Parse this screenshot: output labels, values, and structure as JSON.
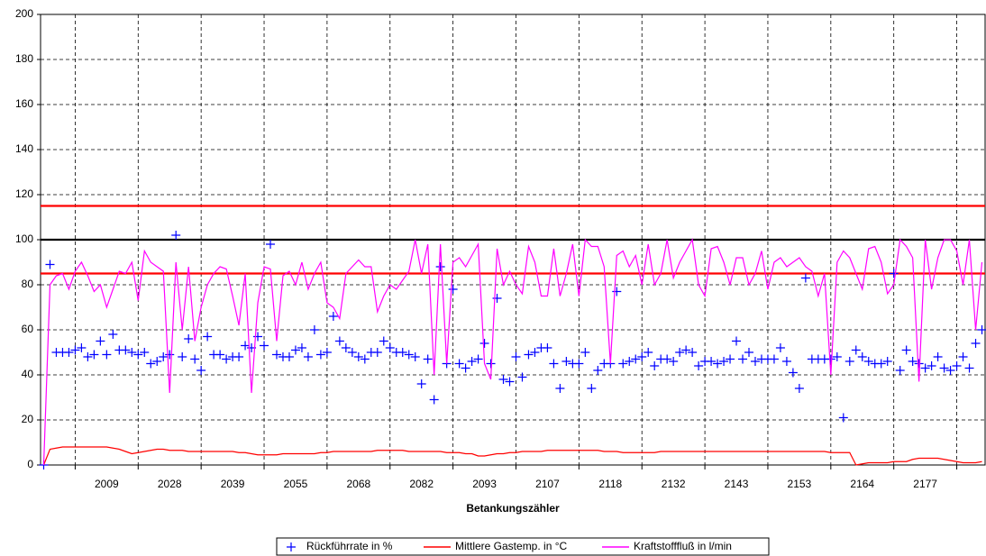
{
  "chart_data": {
    "type": "line",
    "xlabel": "Betankungszähler",
    "categories": [
      null,
      null,
      null,
      null,
      null,
      null,
      null,
      null,
      null,
      null,
      "2009",
      null,
      null,
      null,
      null,
      null,
      null,
      null,
      null,
      null,
      "2028",
      null,
      null,
      null,
      null,
      null,
      null,
      null,
      null,
      null,
      "2039",
      null,
      null,
      null,
      null,
      null,
      null,
      null,
      null,
      null,
      "2055",
      null,
      null,
      null,
      null,
      null,
      null,
      null,
      null,
      null,
      "2068",
      null,
      null,
      null,
      null,
      null,
      null,
      null,
      null,
      null,
      "2082",
      null,
      null,
      null,
      null,
      null,
      null,
      null,
      null,
      null,
      "2093",
      null,
      null,
      null,
      null,
      null,
      null,
      null,
      null,
      null,
      "2107",
      null,
      null,
      null,
      null,
      null,
      null,
      null,
      null,
      null,
      "2118",
      null,
      null,
      null,
      null,
      null,
      null,
      null,
      null,
      null,
      "2132",
      null,
      null,
      null,
      null,
      null,
      null,
      null,
      null,
      null,
      "2143",
      null,
      null,
      null,
      null,
      null,
      null,
      null,
      null,
      null,
      "2153",
      null,
      null,
      null,
      null,
      null,
      null,
      null,
      null,
      null,
      "2164",
      null,
      null,
      null,
      null,
      null,
      null,
      null,
      null,
      null,
      "2177",
      null,
      null,
      null,
      null,
      null,
      null,
      null,
      null,
      null
    ],
    "ylim": [
      0,
      200
    ],
    "yticks": [
      0,
      20,
      40,
      60,
      80,
      100,
      120,
      140,
      160,
      180,
      200
    ],
    "grid": true,
    "reference_lines": [
      {
        "value": 115,
        "color": "#ff0000"
      },
      {
        "value": 100,
        "color": "#000000"
      },
      {
        "value": 85,
        "color": "#ff0000"
      }
    ],
    "legend": "bottom",
    "series": [
      {
        "name": "Rückführrate in %",
        "color": "#0000ff",
        "style": "plus",
        "values": [
          0,
          89,
          50,
          50,
          50,
          51,
          52,
          48,
          49,
          55,
          49,
          58,
          51,
          51,
          50,
          49,
          50,
          45,
          46,
          48,
          49,
          102,
          48,
          56,
          47,
          42,
          57,
          49,
          49,
          47,
          48,
          48,
          53,
          52,
          57,
          53,
          98,
          49,
          48,
          48,
          51,
          52,
          48,
          60,
          49,
          50,
          66,
          55,
          52,
          50,
          48,
          47,
          50,
          50,
          55,
          52,
          50,
          50,
          49,
          48,
          36,
          47,
          29,
          88,
          45,
          78,
          45,
          43,
          46,
          47,
          54,
          45,
          74,
          38,
          37,
          48,
          39,
          49,
          50,
          52,
          52,
          45,
          34,
          46,
          45,
          45,
          50,
          34,
          42,
          45,
          45,
          77,
          45,
          46,
          47,
          48,
          50,
          44,
          47,
          47,
          46,
          50,
          51,
          50,
          44,
          46,
          46,
          45,
          46,
          47,
          55,
          47,
          50,
          46,
          47,
          47,
          47,
          52,
          46,
          41,
          34,
          83,
          47,
          47,
          47,
          47,
          48,
          21,
          46,
          51,
          48,
          46,
          45,
          45,
          46,
          85,
          42,
          51,
          46,
          45,
          43,
          44,
          48,
          43,
          42,
          44,
          48,
          43,
          54,
          60
        ]
      },
      {
        "name": "Mittlere Gastemp. in °C",
        "color": "#ff0000",
        "style": "line",
        "values": [
          0,
          7,
          7.5,
          8,
          8,
          8,
          8,
          8,
          8,
          8,
          8,
          7.5,
          7,
          6,
          5,
          5.5,
          6,
          6.5,
          7,
          7,
          6.5,
          6.5,
          6.5,
          6,
          6,
          6,
          6,
          6,
          6,
          6,
          6,
          5.5,
          5.5,
          5,
          4.5,
          4.5,
          4.5,
          4.5,
          5,
          5,
          5,
          5,
          5,
          5,
          5.5,
          5.5,
          6,
          6,
          6,
          6,
          6,
          6,
          6,
          6.5,
          6.5,
          6.5,
          6.5,
          6.5,
          6,
          6,
          6,
          6,
          6,
          6,
          5.5,
          5.5,
          5.5,
          5,
          5,
          4,
          4,
          4.5,
          5,
          5,
          5.5,
          5.5,
          6,
          6,
          6,
          6,
          6.5,
          6.5,
          6.5,
          6.5,
          6.5,
          6.5,
          6.5,
          6.5,
          6.5,
          6,
          6,
          6,
          5.5,
          5.5,
          5.5,
          5.5,
          5.5,
          5.5,
          6,
          6,
          6,
          6,
          6,
          6,
          6,
          6,
          6,
          6,
          6,
          6,
          6,
          6,
          6,
          6,
          6,
          6,
          6,
          6,
          6,
          6,
          6,
          6,
          6,
          6,
          6,
          5.5,
          5.5,
          5.5,
          5.5,
          0,
          0.5,
          1,
          1,
          1,
          1,
          1.5,
          1.5,
          1.5,
          2.5,
          3,
          3,
          3,
          3,
          2.5,
          2,
          1.5,
          1,
          1,
          1,
          1.5
        ]
      },
      {
        "name": "Kraftstofffluß in l/min",
        "color": "#ff00ff",
        "style": "line",
        "values": [
          0,
          80,
          84,
          85,
          78,
          86,
          90,
          84,
          77,
          80,
          70,
          78,
          86,
          85,
          90,
          73,
          95,
          90,
          88,
          86,
          32,
          90,
          60,
          88,
          55,
          70,
          80,
          85,
          88,
          87,
          75,
          62,
          85,
          32,
          72,
          88,
          87,
          55,
          84,
          86,
          80,
          90,
          78,
          85,
          90,
          72,
          70,
          65,
          85,
          88,
          91,
          88,
          88,
          68,
          75,
          80,
          78,
          82,
          86,
          100,
          85,
          98,
          40,
          98,
          45,
          90,
          92,
          88,
          93,
          98,
          45,
          38,
          96,
          80,
          86,
          80,
          76,
          97,
          90,
          75,
          75,
          96,
          75,
          85,
          98,
          75,
          100,
          97,
          97,
          88,
          45,
          93,
          95,
          88,
          93,
          80,
          98,
          80,
          85,
          100,
          83,
          90,
          95,
          100,
          80,
          75,
          96,
          97,
          90,
          80,
          92,
          92,
          80,
          85,
          95,
          78,
          90,
          92,
          88,
          90,
          92,
          88,
          86,
          75,
          85,
          40,
          90,
          95,
          92,
          85,
          78,
          96,
          97,
          90,
          76,
          80,
          100,
          97,
          92,
          37,
          100,
          78,
          92,
          100,
          100,
          95,
          80,
          100,
          60,
          90
        ]
      }
    ]
  }
}
